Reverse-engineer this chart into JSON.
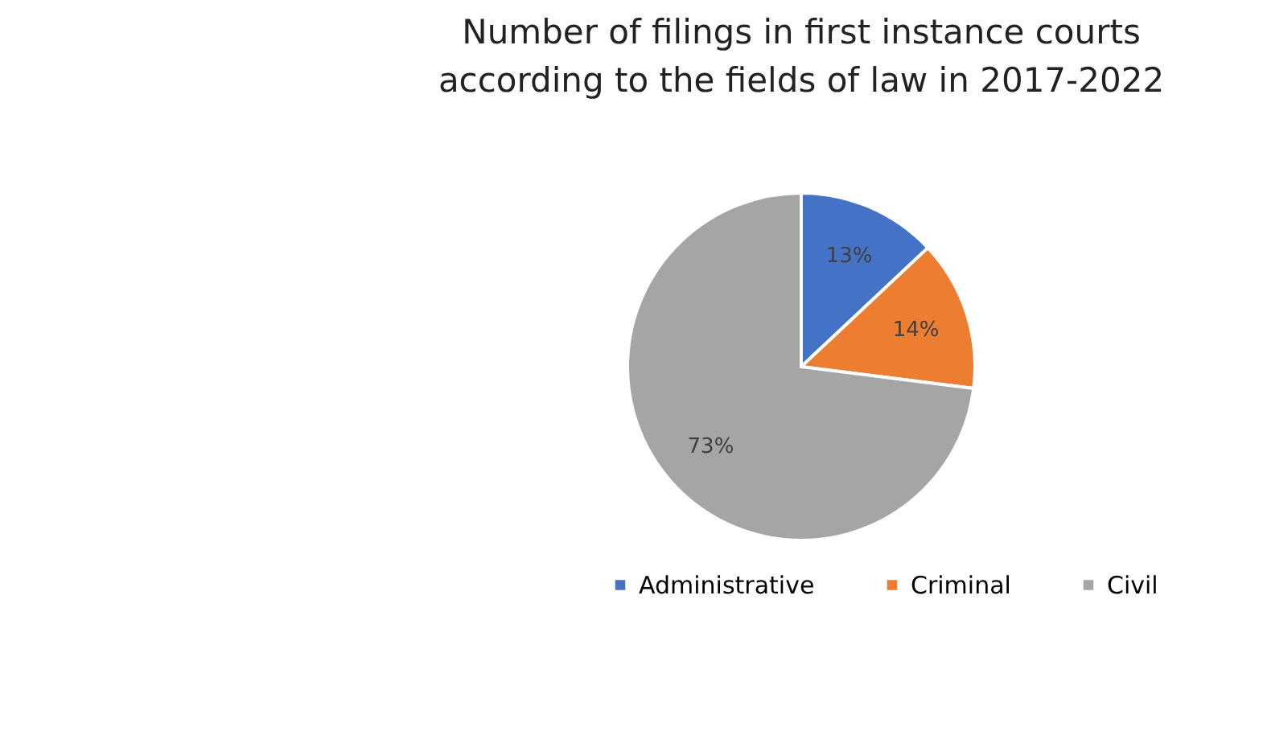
{
  "chart_data": {
    "type": "pie",
    "title": "Number of filings in first instance courts according to the fields of law in 2017-2022",
    "categories": [
      "Administrative",
      "Criminal",
      "Civil"
    ],
    "values": [
      13,
      14,
      73
    ],
    "colors": [
      "#4472c4",
      "#ed7d31",
      "#a5a5a5"
    ],
    "value_labels": [
      "13%",
      "14%",
      "73%"
    ],
    "legend": "bottom"
  }
}
